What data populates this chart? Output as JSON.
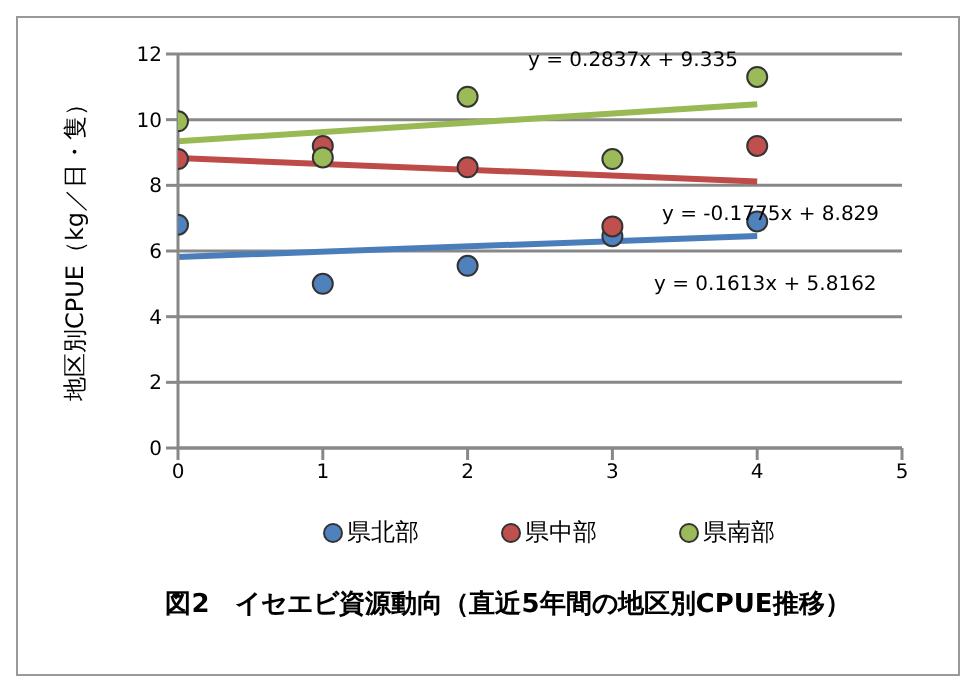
{
  "chart_data": {
    "type": "scatter",
    "title": "図2　イセエビ資源動向（直近5年間の地区別CPUE推移）",
    "ylabel": "地区別CPUE（kg／日・隻）",
    "xlim": [
      0,
      5
    ],
    "xticks": [
      0,
      1,
      2,
      3,
      4,
      5
    ],
    "ylim": [
      0,
      12
    ],
    "yticks": [
      0,
      2,
      4,
      6,
      8,
      10,
      12
    ],
    "grid": "y",
    "legend": "bottom",
    "series": [
      {
        "name": "県北部",
        "color": "#4f81bd",
        "marker": "circle",
        "x": [
          0,
          1,
          2,
          3,
          4
        ],
        "values": [
          6.8,
          5.0,
          5.55,
          6.45,
          6.9
        ]
      },
      {
        "name": "県中部",
        "color": "#c0504d",
        "marker": "circle",
        "x": [
          0,
          1,
          2,
          3,
          4
        ],
        "values": [
          8.8,
          9.2,
          8.55,
          6.75,
          9.2
        ]
      },
      {
        "name": "県南部",
        "color": "#9bbb59",
        "marker": "circle",
        "x": [
          0,
          1,
          2,
          3,
          4
        ],
        "values": [
          9.95,
          8.85,
          10.7,
          8.8,
          11.3
        ]
      },
      {
        "type": "line",
        "color": "#4a7ebb",
        "marker": "none",
        "x": [
          0,
          4
        ],
        "values": [
          5.82,
          6.46
        ]
      },
      {
        "type": "line",
        "color": "#be4b48",
        "marker": "none",
        "x": [
          0,
          4
        ],
        "values": [
          8.83,
          8.12
        ]
      },
      {
        "type": "line",
        "color": "#98b954",
        "marker": "none",
        "x": [
          0,
          4
        ],
        "values": [
          9.34,
          10.47
        ]
      }
    ],
    "annotations": [
      "y = 0.2837x + 9.335",
      "y = -0.1775x + 8.829",
      "y = 0.1613x + 5.8162"
    ]
  }
}
